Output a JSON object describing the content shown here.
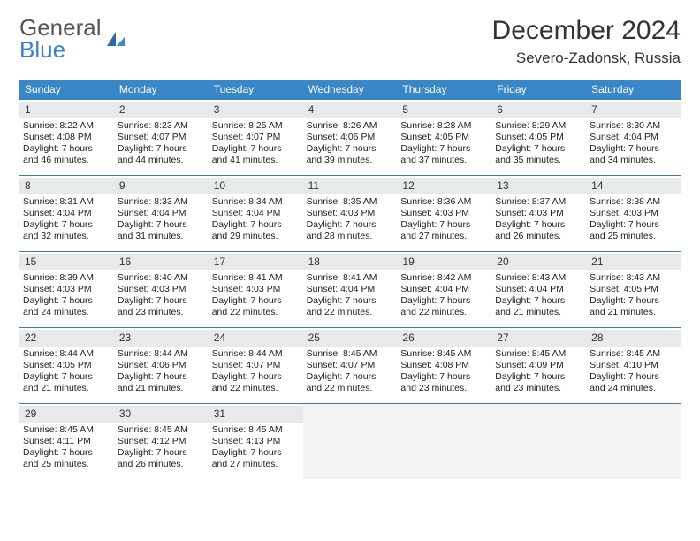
{
  "logo": {
    "word1": "General",
    "word2": "Blue"
  },
  "header": {
    "title": "December 2024",
    "location": "Severo-Zadonsk, Russia"
  },
  "colors": {
    "accent": "#3a87c7",
    "numbg": "#e7e9eb",
    "border": "#3a7fb0"
  },
  "daynames": [
    "Sunday",
    "Monday",
    "Tuesday",
    "Wednesday",
    "Thursday",
    "Friday",
    "Saturday"
  ],
  "days": [
    {
      "n": "1",
      "sr": "Sunrise: 8:22 AM",
      "ss": "Sunset: 4:08 PM",
      "d1": "Daylight: 7 hours",
      "d2": "and 46 minutes."
    },
    {
      "n": "2",
      "sr": "Sunrise: 8:23 AM",
      "ss": "Sunset: 4:07 PM",
      "d1": "Daylight: 7 hours",
      "d2": "and 44 minutes."
    },
    {
      "n": "3",
      "sr": "Sunrise: 8:25 AM",
      "ss": "Sunset: 4:07 PM",
      "d1": "Daylight: 7 hours",
      "d2": "and 41 minutes."
    },
    {
      "n": "4",
      "sr": "Sunrise: 8:26 AM",
      "ss": "Sunset: 4:06 PM",
      "d1": "Daylight: 7 hours",
      "d2": "and 39 minutes."
    },
    {
      "n": "5",
      "sr": "Sunrise: 8:28 AM",
      "ss": "Sunset: 4:05 PM",
      "d1": "Daylight: 7 hours",
      "d2": "and 37 minutes."
    },
    {
      "n": "6",
      "sr": "Sunrise: 8:29 AM",
      "ss": "Sunset: 4:05 PM",
      "d1": "Daylight: 7 hours",
      "d2": "and 35 minutes."
    },
    {
      "n": "7",
      "sr": "Sunrise: 8:30 AM",
      "ss": "Sunset: 4:04 PM",
      "d1": "Daylight: 7 hours",
      "d2": "and 34 minutes."
    },
    {
      "n": "8",
      "sr": "Sunrise: 8:31 AM",
      "ss": "Sunset: 4:04 PM",
      "d1": "Daylight: 7 hours",
      "d2": "and 32 minutes."
    },
    {
      "n": "9",
      "sr": "Sunrise: 8:33 AM",
      "ss": "Sunset: 4:04 PM",
      "d1": "Daylight: 7 hours",
      "d2": "and 31 minutes."
    },
    {
      "n": "10",
      "sr": "Sunrise: 8:34 AM",
      "ss": "Sunset: 4:04 PM",
      "d1": "Daylight: 7 hours",
      "d2": "and 29 minutes."
    },
    {
      "n": "11",
      "sr": "Sunrise: 8:35 AM",
      "ss": "Sunset: 4:03 PM",
      "d1": "Daylight: 7 hours",
      "d2": "and 28 minutes."
    },
    {
      "n": "12",
      "sr": "Sunrise: 8:36 AM",
      "ss": "Sunset: 4:03 PM",
      "d1": "Daylight: 7 hours",
      "d2": "and 27 minutes."
    },
    {
      "n": "13",
      "sr": "Sunrise: 8:37 AM",
      "ss": "Sunset: 4:03 PM",
      "d1": "Daylight: 7 hours",
      "d2": "and 26 minutes."
    },
    {
      "n": "14",
      "sr": "Sunrise: 8:38 AM",
      "ss": "Sunset: 4:03 PM",
      "d1": "Daylight: 7 hours",
      "d2": "and 25 minutes."
    },
    {
      "n": "15",
      "sr": "Sunrise: 8:39 AM",
      "ss": "Sunset: 4:03 PM",
      "d1": "Daylight: 7 hours",
      "d2": "and 24 minutes."
    },
    {
      "n": "16",
      "sr": "Sunrise: 8:40 AM",
      "ss": "Sunset: 4:03 PM",
      "d1": "Daylight: 7 hours",
      "d2": "and 23 minutes."
    },
    {
      "n": "17",
      "sr": "Sunrise: 8:41 AM",
      "ss": "Sunset: 4:03 PM",
      "d1": "Daylight: 7 hours",
      "d2": "and 22 minutes."
    },
    {
      "n": "18",
      "sr": "Sunrise: 8:41 AM",
      "ss": "Sunset: 4:04 PM",
      "d1": "Daylight: 7 hours",
      "d2": "and 22 minutes."
    },
    {
      "n": "19",
      "sr": "Sunrise: 8:42 AM",
      "ss": "Sunset: 4:04 PM",
      "d1": "Daylight: 7 hours",
      "d2": "and 22 minutes."
    },
    {
      "n": "20",
      "sr": "Sunrise: 8:43 AM",
      "ss": "Sunset: 4:04 PM",
      "d1": "Daylight: 7 hours",
      "d2": "and 21 minutes."
    },
    {
      "n": "21",
      "sr": "Sunrise: 8:43 AM",
      "ss": "Sunset: 4:05 PM",
      "d1": "Daylight: 7 hours",
      "d2": "and 21 minutes."
    },
    {
      "n": "22",
      "sr": "Sunrise: 8:44 AM",
      "ss": "Sunset: 4:05 PM",
      "d1": "Daylight: 7 hours",
      "d2": "and 21 minutes."
    },
    {
      "n": "23",
      "sr": "Sunrise: 8:44 AM",
      "ss": "Sunset: 4:06 PM",
      "d1": "Daylight: 7 hours",
      "d2": "and 21 minutes."
    },
    {
      "n": "24",
      "sr": "Sunrise: 8:44 AM",
      "ss": "Sunset: 4:07 PM",
      "d1": "Daylight: 7 hours",
      "d2": "and 22 minutes."
    },
    {
      "n": "25",
      "sr": "Sunrise: 8:45 AM",
      "ss": "Sunset: 4:07 PM",
      "d1": "Daylight: 7 hours",
      "d2": "and 22 minutes."
    },
    {
      "n": "26",
      "sr": "Sunrise: 8:45 AM",
      "ss": "Sunset: 4:08 PM",
      "d1": "Daylight: 7 hours",
      "d2": "and 23 minutes."
    },
    {
      "n": "27",
      "sr": "Sunrise: 8:45 AM",
      "ss": "Sunset: 4:09 PM",
      "d1": "Daylight: 7 hours",
      "d2": "and 23 minutes."
    },
    {
      "n": "28",
      "sr": "Sunrise: 8:45 AM",
      "ss": "Sunset: 4:10 PM",
      "d1": "Daylight: 7 hours",
      "d2": "and 24 minutes."
    },
    {
      "n": "29",
      "sr": "Sunrise: 8:45 AM",
      "ss": "Sunset: 4:11 PM",
      "d1": "Daylight: 7 hours",
      "d2": "and 25 minutes."
    },
    {
      "n": "30",
      "sr": "Sunrise: 8:45 AM",
      "ss": "Sunset: 4:12 PM",
      "d1": "Daylight: 7 hours",
      "d2": "and 26 minutes."
    },
    {
      "n": "31",
      "sr": "Sunrise: 8:45 AM",
      "ss": "Sunset: 4:13 PM",
      "d1": "Daylight: 7 hours",
      "d2": "and 27 minutes."
    }
  ]
}
